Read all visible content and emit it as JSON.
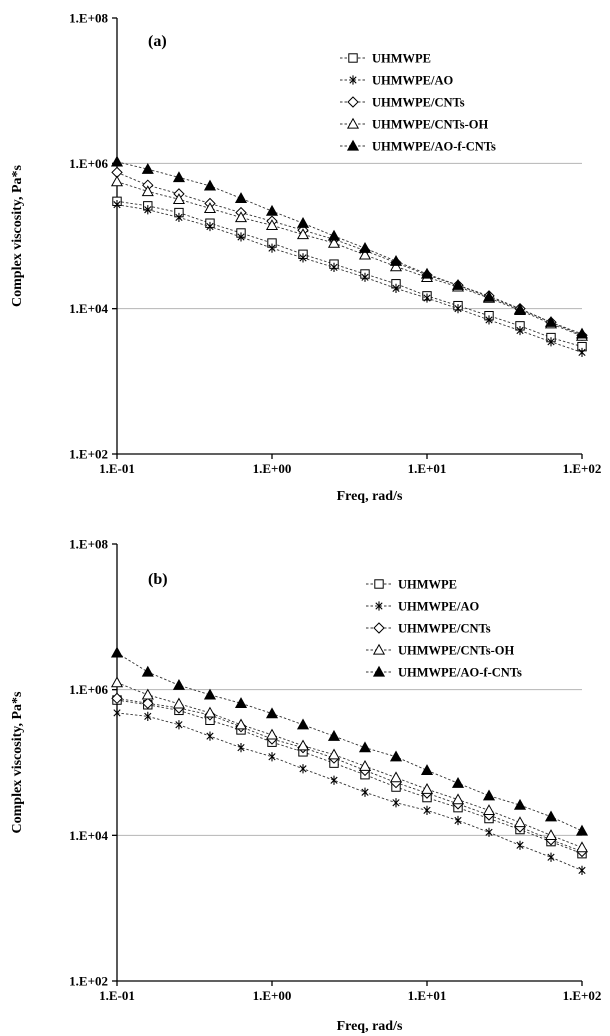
{
  "chart_data": [
    {
      "type": "line",
      "panel_label": "(a)",
      "xlabel": "Freq, rad/s",
      "ylabel": "Complex viscosity, Pa*s",
      "x_scale": "log",
      "y_scale": "log",
      "xlim": [
        0.1,
        100
      ],
      "ylim": [
        100,
        100000000
      ],
      "x_ticks": [
        "1.E-01",
        "1.E+00",
        "1.E+01",
        "1.E+02"
      ],
      "y_ticks": [
        "1.E+02",
        "1.E+04",
        "1.E+06",
        "1.E+08"
      ],
      "grid": "horizontal",
      "legend_position": "top-right",
      "x": [
        0.1,
        0.158,
        0.251,
        0.398,
        0.631,
        1.0,
        1.585,
        2.512,
        3.981,
        6.31,
        10.0,
        15.85,
        25.12,
        39.81,
        63.1,
        100.0
      ],
      "series": [
        {
          "name": "UHMWPE",
          "marker": "square",
          "values": [
            300000,
            260000,
            210000,
            150000,
            110000,
            80000,
            56000,
            41000,
            30000,
            22000,
            15000,
            11000,
            8000,
            5800,
            4000,
            3000
          ]
        },
        {
          "name": "UHMWPE/AO",
          "marker": "asterisk",
          "values": [
            270000,
            230000,
            180000,
            135000,
            97000,
            68000,
            50000,
            37000,
            27000,
            19000,
            14000,
            10000,
            7000,
            5000,
            3500,
            2500
          ]
        },
        {
          "name": "UHMWPE/CNTs",
          "marker": "diamond",
          "values": [
            750000,
            500000,
            380000,
            280000,
            210000,
            160000,
            120000,
            90000,
            63000,
            43000,
            29000,
            21000,
            15000,
            10000,
            6500,
            4300
          ]
        },
        {
          "name": "UHMWPE/CNTs-OH",
          "marker": "triangle-open",
          "values": [
            560000,
            410000,
            320000,
            240000,
            180000,
            140000,
            105000,
            80000,
            55000,
            38000,
            27000,
            20000,
            14000,
            9500,
            6200,
            4200
          ]
        },
        {
          "name": "UHMWPE/AO-f-CNTs",
          "marker": "triangle-filled",
          "values": [
            1050000,
            830000,
            640000,
            490000,
            330000,
            220000,
            150000,
            100000,
            68000,
            45000,
            30000,
            21000,
            14500,
            9800,
            6500,
            4500
          ]
        }
      ]
    },
    {
      "type": "line",
      "panel_label": "(b)",
      "xlabel": "Freq, rad/s",
      "ylabel": "Complex viscosity, Pa*s",
      "x_scale": "log",
      "y_scale": "log",
      "xlim": [
        0.1,
        100
      ],
      "ylim": [
        100,
        100000000
      ],
      "x_ticks": [
        "1.E-01",
        "1.E+00",
        "1.E+01",
        "1.E+02"
      ],
      "y_ticks": [
        "1.E+02",
        "1.E+04",
        "1.E+06",
        "1.E+08"
      ],
      "grid": "horizontal",
      "legend_position": "top-right",
      "x": [
        0.1,
        0.158,
        0.251,
        0.398,
        0.631,
        1.0,
        1.585,
        2.512,
        3.981,
        6.31,
        10.0,
        15.85,
        25.12,
        39.81,
        63.1,
        100.0
      ],
      "series": [
        {
          "name": "UHMWPE",
          "marker": "square",
          "values": [
            720000,
            620000,
            520000,
            380000,
            280000,
            190000,
            140000,
            98000,
            68000,
            46000,
            33000,
            24000,
            17000,
            12000,
            8200,
            5600
          ]
        },
        {
          "name": "UHMWPE/AO",
          "marker": "asterisk",
          "values": [
            480000,
            430000,
            330000,
            230000,
            160000,
            120000,
            82000,
            57000,
            39000,
            28000,
            22000,
            16000,
            11000,
            7300,
            5000,
            3300
          ]
        },
        {
          "name": "UHMWPE/CNTs",
          "marker": "diamond",
          "values": [
            760000,
            650000,
            560000,
            450000,
            310000,
            210000,
            160000,
            115000,
            78000,
            53000,
            38000,
            27000,
            19000,
            13000,
            8700,
            6000
          ]
        },
        {
          "name": "UHMWPE/CNTs-OH",
          "marker": "triangle-open",
          "values": [
            1250000,
            850000,
            640000,
            480000,
            330000,
            240000,
            170000,
            128000,
            89000,
            62000,
            43000,
            31000,
            22000,
            15000,
            10000,
            6800
          ]
        },
        {
          "name": "UHMWPE/AO-f-CNTs",
          "marker": "triangle-filled",
          "values": [
            3200000,
            1750000,
            1150000,
            850000,
            650000,
            470000,
            330000,
            230000,
            160000,
            120000,
            78000,
            52000,
            35000,
            26000,
            18000,
            11500
          ]
        }
      ]
    }
  ]
}
